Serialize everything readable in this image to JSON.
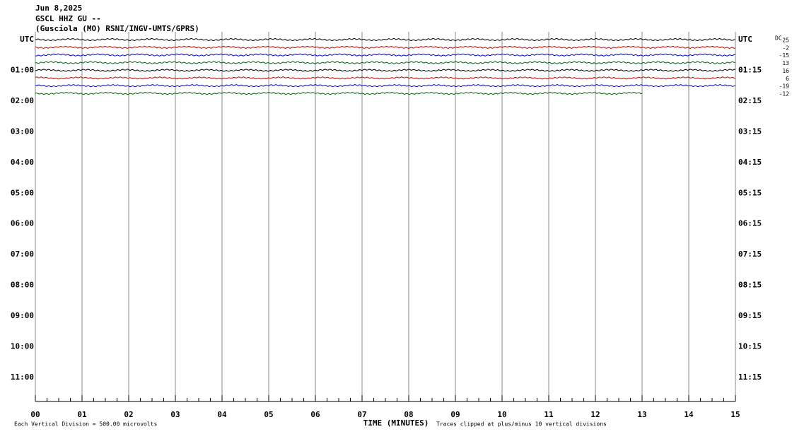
{
  "header": {
    "date": "Jun 8,2025",
    "channel": "GSCL HHZ GU --",
    "station": "(Gusciola (MO) RSNI/INGV-UMTS/GPRS)"
  },
  "chart_data": {
    "type": "helicorder",
    "left_labels": [
      "UTC",
      "01:00",
      "02:00",
      "03:00",
      "04:00",
      "05:00",
      "06:00",
      "07:00",
      "08:00",
      "09:00",
      "10:00",
      "11:00"
    ],
    "right_labels": [
      "UTC",
      "01:15",
      "02:15",
      "03:15",
      "04:15",
      "05:15",
      "06:15",
      "07:15",
      "08:15",
      "09:15",
      "10:15",
      "11:15"
    ],
    "xlim": [
      0,
      15
    ],
    "xticks": [
      {
        "value": 0,
        "label": "00"
      },
      {
        "value": 1,
        "label": "01"
      },
      {
        "value": 2,
        "label": "02"
      },
      {
        "value": 3,
        "label": "03"
      },
      {
        "value": 4,
        "label": "04"
      },
      {
        "value": 5,
        "label": "05"
      },
      {
        "value": 6,
        "label": "06"
      },
      {
        "value": 7,
        "label": "07"
      },
      {
        "value": 8,
        "label": "08"
      },
      {
        "value": 9,
        "label": "09"
      },
      {
        "value": 10,
        "label": "10"
      },
      {
        "value": 11,
        "label": "11"
      },
      {
        "value": 12,
        "label": "12"
      },
      {
        "value": 13,
        "label": "13"
      },
      {
        "value": 14,
        "label": "14"
      },
      {
        "value": 15,
        "label": "15"
      }
    ],
    "xlabel": "TIME (MINUTES)",
    "dc_label": "DC",
    "dc_offsets": [
      25,
      -2,
      -15,
      13,
      16,
      6,
      -19,
      -12
    ],
    "trace_colors": [
      "#000000",
      "#cc0000",
      "#0000cc",
      "#006600"
    ],
    "last_trace_end": 13,
    "footer_left": "Each Vertical Division =  500.00 microvolts",
    "footer_right": "Traces clipped at plus/minus 10 vertical divisions"
  }
}
